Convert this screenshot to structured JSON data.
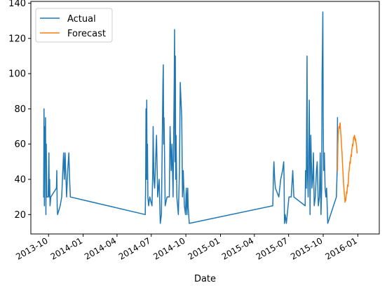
{
  "chart_data": {
    "type": "line",
    "title": "",
    "xlabel": "Date",
    "ylabel": "",
    "x_axis_type": "date",
    "xlim": [
      "2013-08-15",
      "2016-02-27"
    ],
    "ylim": [
      9,
      141
    ],
    "grid": false,
    "legend_position": "upper-left",
    "x_ticks": [
      {
        "date": "2013-10-01",
        "label": "2013-10"
      },
      {
        "date": "2014-01-01",
        "label": "2014-01"
      },
      {
        "date": "2014-04-01",
        "label": "2014-04"
      },
      {
        "date": "2014-07-01",
        "label": "2014-07"
      },
      {
        "date": "2014-10-01",
        "label": "2014-10"
      },
      {
        "date": "2015-01-01",
        "label": "2015-01"
      },
      {
        "date": "2015-04-01",
        "label": "2015-04"
      },
      {
        "date": "2015-07-01",
        "label": "2015-07"
      },
      {
        "date": "2015-10-01",
        "label": "2015-10"
      },
      {
        "date": "2016-01-01",
        "label": "2016-01"
      }
    ],
    "y_ticks": [
      20,
      40,
      60,
      80,
      100,
      120,
      140
    ],
    "series": [
      {
        "name": "Actual",
        "color": "#1f77b4",
        "points": [
          [
            "2013-09-18",
            30
          ],
          [
            "2013-09-19",
            80
          ],
          [
            "2013-09-20",
            25
          ],
          [
            "2013-09-21",
            70
          ],
          [
            "2013-09-22",
            55
          ],
          [
            "2013-09-23",
            75
          ],
          [
            "2013-09-24",
            20
          ],
          [
            "2013-09-25",
            60
          ],
          [
            "2013-09-26",
            30
          ],
          [
            "2013-09-30",
            30
          ],
          [
            "2013-10-02",
            55
          ],
          [
            "2013-10-03",
            30
          ],
          [
            "2013-10-04",
            40
          ],
          [
            "2013-10-05",
            25
          ],
          [
            "2013-10-07",
            30
          ],
          [
            "2013-10-22",
            35
          ],
          [
            "2013-10-23",
            45
          ],
          [
            "2013-10-24",
            25
          ],
          [
            "2013-10-25",
            20
          ],
          [
            "2013-11-01",
            25
          ],
          [
            "2013-11-05",
            30
          ],
          [
            "2013-11-10",
            55
          ],
          [
            "2013-11-12",
            40
          ],
          [
            "2013-11-14",
            55
          ],
          [
            "2013-11-18",
            30
          ],
          [
            "2013-11-21",
            45
          ],
          [
            "2013-11-24",
            55
          ],
          [
            "2013-11-26",
            40
          ],
          [
            "2013-11-28",
            30
          ],
          [
            "2014-06-15",
            20
          ],
          [
            "2014-06-16",
            35
          ],
          [
            "2014-06-17",
            80
          ],
          [
            "2014-06-18",
            40
          ],
          [
            "2014-06-19",
            85
          ],
          [
            "2014-06-20",
            40
          ],
          [
            "2014-06-21",
            60
          ],
          [
            "2014-06-22",
            30
          ],
          [
            "2014-06-24",
            25
          ],
          [
            "2014-06-27",
            30
          ],
          [
            "2014-07-03",
            25
          ],
          [
            "2014-07-05",
            45
          ],
          [
            "2014-07-06",
            70
          ],
          [
            "2014-07-08",
            40
          ],
          [
            "2014-07-10",
            35
          ],
          [
            "2014-07-15",
            65
          ],
          [
            "2014-07-18",
            30
          ],
          [
            "2014-07-22",
            40
          ],
          [
            "2014-07-25",
            15
          ],
          [
            "2014-07-28",
            20
          ],
          [
            "2014-08-01",
            95
          ],
          [
            "2014-08-02",
            105
          ],
          [
            "2014-08-03",
            60
          ],
          [
            "2014-08-04",
            75
          ],
          [
            "2014-08-07",
            25
          ],
          [
            "2014-08-12",
            30
          ],
          [
            "2014-08-18",
            30
          ],
          [
            "2014-08-20",
            70
          ],
          [
            "2014-08-23",
            45
          ],
          [
            "2014-08-25",
            60
          ],
          [
            "2014-08-28",
            30
          ],
          [
            "2014-08-31",
            95
          ],
          [
            "2014-09-01",
            125
          ],
          [
            "2014-09-02",
            50
          ],
          [
            "2014-09-03",
            110
          ],
          [
            "2014-09-04",
            40
          ],
          [
            "2014-09-05",
            65
          ],
          [
            "2014-09-07",
            30
          ],
          [
            "2014-09-09",
            25
          ],
          [
            "2014-09-11",
            20
          ],
          [
            "2014-09-14",
            45
          ],
          [
            "2014-09-16",
            95
          ],
          [
            "2014-09-18",
            85
          ],
          [
            "2014-09-20",
            75
          ],
          [
            "2014-09-22",
            30
          ],
          [
            "2014-09-24",
            45
          ],
          [
            "2014-09-27",
            25
          ],
          [
            "2014-09-30",
            20
          ],
          [
            "2014-10-02",
            35
          ],
          [
            "2014-10-04",
            20
          ],
          [
            "2014-10-05",
            30
          ],
          [
            "2014-10-06",
            35
          ],
          [
            "2014-10-07",
            25
          ],
          [
            "2014-10-10",
            15
          ],
          [
            "2015-05-20",
            25
          ],
          [
            "2015-05-21",
            35
          ],
          [
            "2015-05-22",
            45
          ],
          [
            "2015-05-23",
            50
          ],
          [
            "2015-05-25",
            40
          ],
          [
            "2015-05-27",
            35
          ],
          [
            "2015-06-05",
            30
          ],
          [
            "2015-06-10",
            40
          ],
          [
            "2015-06-15",
            45
          ],
          [
            "2015-06-18",
            50
          ],
          [
            "2015-06-19",
            40
          ],
          [
            "2015-06-20",
            15
          ],
          [
            "2015-06-22",
            20
          ],
          [
            "2015-06-25",
            15
          ],
          [
            "2015-07-02",
            30
          ],
          [
            "2015-07-08",
            30
          ],
          [
            "2015-07-12",
            45
          ],
          [
            "2015-07-15",
            30
          ],
          [
            "2015-08-14",
            25
          ],
          [
            "2015-08-15",
            45
          ],
          [
            "2015-08-17",
            35
          ],
          [
            "2015-08-18",
            75
          ],
          [
            "2015-08-19",
            110
          ],
          [
            "2015-08-20",
            45
          ],
          [
            "2015-08-22",
            30
          ],
          [
            "2015-08-25",
            85
          ],
          [
            "2015-08-27",
            20
          ],
          [
            "2015-08-29",
            65
          ],
          [
            "2015-09-01",
            35
          ],
          [
            "2015-09-03",
            40
          ],
          [
            "2015-09-05",
            55
          ],
          [
            "2015-09-07",
            25
          ],
          [
            "2015-09-10",
            30
          ],
          [
            "2015-09-13",
            45
          ],
          [
            "2015-09-15",
            50
          ],
          [
            "2015-09-18",
            25
          ],
          [
            "2015-09-21",
            30
          ],
          [
            "2015-09-23",
            55
          ],
          [
            "2015-09-25",
            20
          ],
          [
            "2015-09-27",
            35
          ],
          [
            "2015-09-28",
            100
          ],
          [
            "2015-09-29",
            115
          ],
          [
            "2015-09-30",
            135
          ],
          [
            "2015-10-01",
            75
          ],
          [
            "2015-10-02",
            45
          ],
          [
            "2015-10-04",
            55
          ],
          [
            "2015-10-06",
            35
          ],
          [
            "2015-10-08",
            30
          ],
          [
            "2015-10-10",
            35
          ],
          [
            "2015-10-13",
            15
          ],
          [
            "2015-11-05",
            30
          ],
          [
            "2015-11-07",
            45
          ],
          [
            "2015-11-08",
            75
          ]
        ]
      },
      {
        "name": "Forecast",
        "color": "#ff7f0e",
        "points": [
          [
            "2015-11-08",
            45
          ],
          [
            "2015-11-09",
            60
          ],
          [
            "2015-11-10",
            66
          ],
          [
            "2015-11-11",
            68
          ],
          [
            "2015-11-12",
            70
          ],
          [
            "2015-11-13",
            69
          ],
          [
            "2015-11-14",
            71
          ],
          [
            "2015-11-15",
            72
          ],
          [
            "2015-11-16",
            68
          ],
          [
            "2015-11-17",
            65
          ],
          [
            "2015-11-18",
            62
          ],
          [
            "2015-11-19",
            58
          ],
          [
            "2015-11-20",
            55
          ],
          [
            "2015-11-21",
            50
          ],
          [
            "2015-11-22",
            46
          ],
          [
            "2015-11-23",
            42
          ],
          [
            "2015-11-24",
            38
          ],
          [
            "2015-11-25",
            35
          ],
          [
            "2015-11-26",
            32
          ],
          [
            "2015-11-27",
            30
          ],
          [
            "2015-11-28",
            27
          ],
          [
            "2015-11-29",
            29
          ],
          [
            "2015-11-30",
            28
          ],
          [
            "2015-12-01",
            31
          ],
          [
            "2015-12-02",
            33
          ],
          [
            "2015-12-03",
            32
          ],
          [
            "2015-12-04",
            35
          ],
          [
            "2015-12-05",
            37
          ],
          [
            "2015-12-06",
            36
          ],
          [
            "2015-12-07",
            40
          ],
          [
            "2015-12-08",
            44
          ],
          [
            "2015-12-09",
            45
          ],
          [
            "2015-12-10",
            48
          ],
          [
            "2015-12-11",
            50
          ],
          [
            "2015-12-12",
            49
          ],
          [
            "2015-12-13",
            52
          ],
          [
            "2015-12-14",
            54
          ],
          [
            "2015-12-15",
            53
          ],
          [
            "2015-12-16",
            57
          ],
          [
            "2015-12-17",
            58
          ],
          [
            "2015-12-18",
            60
          ],
          [
            "2015-12-19",
            59
          ],
          [
            "2015-12-20",
            62
          ],
          [
            "2015-12-21",
            64
          ],
          [
            "2015-12-22",
            63
          ],
          [
            "2015-12-23",
            65
          ],
          [
            "2015-12-24",
            64
          ],
          [
            "2015-12-25",
            62
          ],
          [
            "2015-12-26",
            63
          ],
          [
            "2015-12-27",
            61
          ],
          [
            "2015-12-28",
            60
          ],
          [
            "2015-12-29",
            58
          ],
          [
            "2015-12-30",
            55
          ]
        ]
      }
    ]
  }
}
